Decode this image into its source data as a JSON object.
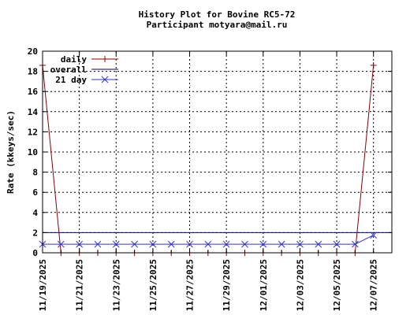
{
  "chart_data": {
    "type": "line",
    "title": "History Plot for Bovine RC5-72",
    "subtitle": "Participant motyara@mail.ru",
    "xlabel": "",
    "ylabel": "Rate (kkeys/sec)",
    "ylim": [
      0,
      20
    ],
    "y_ticks": [
      "0",
      "2",
      "4",
      "6",
      "8",
      "10",
      "12",
      "14",
      "16",
      "18",
      "20"
    ],
    "x_start": "2025-11-19",
    "x_end": "2025-12-08",
    "x_ticks": [
      "11/19/2025",
      "11/21/2025",
      "11/23/2025",
      "11/25/2025",
      "11/27/2025",
      "11/29/2025",
      "12/01/2025",
      "12/03/2025",
      "12/05/2025",
      "12/07/2025"
    ],
    "grid": true,
    "legend_position": "top-left",
    "series": [
      {
        "name": "daily",
        "color": "#8b0000",
        "marker": "plus",
        "points": [
          {
            "x": "2025-11-19",
            "y": 18.6
          },
          {
            "x": "2025-11-20",
            "y": 0.0
          },
          {
            "x": "2025-11-21",
            "y": 0.0
          },
          {
            "x": "2025-11-22",
            "y": 0.0
          },
          {
            "x": "2025-11-23",
            "y": 0.0
          },
          {
            "x": "2025-11-24",
            "y": 0.0
          },
          {
            "x": "2025-11-25",
            "y": 0.0
          },
          {
            "x": "2025-11-26",
            "y": 0.0
          },
          {
            "x": "2025-11-27",
            "y": 0.0
          },
          {
            "x": "2025-11-28",
            "y": 0.0
          },
          {
            "x": "2025-11-29",
            "y": 0.0
          },
          {
            "x": "2025-11-30",
            "y": 0.0
          },
          {
            "x": "2025-12-01",
            "y": 0.0
          },
          {
            "x": "2025-12-02",
            "y": 0.0
          },
          {
            "x": "2025-12-03",
            "y": 0.0
          },
          {
            "x": "2025-12-04",
            "y": 0.0
          },
          {
            "x": "2025-12-05",
            "y": 0.0
          },
          {
            "x": "2025-12-06",
            "y": 0.0
          },
          {
            "x": "2025-12-07",
            "y": 18.6
          }
        ]
      },
      {
        "name": "overall",
        "color": "#000080",
        "marker": "none",
        "points": [
          {
            "x": "2025-11-18",
            "y": 2.0
          },
          {
            "x": "2025-12-08",
            "y": 2.0
          }
        ]
      },
      {
        "name": "21 day",
        "color": "#3333cc",
        "marker": "x",
        "points": [
          {
            "x": "2025-11-19",
            "y": 0.85
          },
          {
            "x": "2025-11-20",
            "y": 0.85
          },
          {
            "x": "2025-11-21",
            "y": 0.85
          },
          {
            "x": "2025-11-22",
            "y": 0.85
          },
          {
            "x": "2025-11-23",
            "y": 0.85
          },
          {
            "x": "2025-11-24",
            "y": 0.85
          },
          {
            "x": "2025-11-25",
            "y": 0.85
          },
          {
            "x": "2025-11-26",
            "y": 0.85
          },
          {
            "x": "2025-11-27",
            "y": 0.85
          },
          {
            "x": "2025-11-28",
            "y": 0.85
          },
          {
            "x": "2025-11-29",
            "y": 0.85
          },
          {
            "x": "2025-11-30",
            "y": 0.85
          },
          {
            "x": "2025-12-01",
            "y": 0.85
          },
          {
            "x": "2025-12-02",
            "y": 0.85
          },
          {
            "x": "2025-12-03",
            "y": 0.85
          },
          {
            "x": "2025-12-04",
            "y": 0.85
          },
          {
            "x": "2025-12-05",
            "y": 0.85
          },
          {
            "x": "2025-12-06",
            "y": 0.85
          },
          {
            "x": "2025-12-07",
            "y": 1.75
          }
        ]
      }
    ]
  }
}
